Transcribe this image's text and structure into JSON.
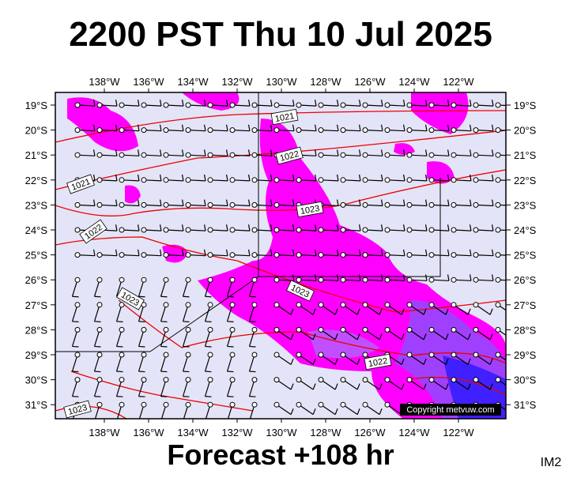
{
  "header": {
    "title": "2200 PST Thu 10 Jul 2025"
  },
  "footer": {
    "title": "Forecast +108 hr",
    "tag": "IM2"
  },
  "map": {
    "longitudes": [
      "138°W",
      "136°W",
      "134°W",
      "132°W",
      "130°W",
      "128°W",
      "126°W",
      "124°W",
      "122°W"
    ],
    "latitudes": [
      "19°S",
      "20°S",
      "21°S",
      "22°S",
      "23°S",
      "24°S",
      "25°S",
      "26°S",
      "27°S",
      "28°S",
      "29°S",
      "30°S",
      "31°S"
    ],
    "isobar_labels": [
      "1021",
      "1022",
      "1023",
      "1021",
      "1022",
      "1023",
      "1023",
      "1022",
      "1023"
    ],
    "copyright": "Copyright metvuw.com"
  }
}
